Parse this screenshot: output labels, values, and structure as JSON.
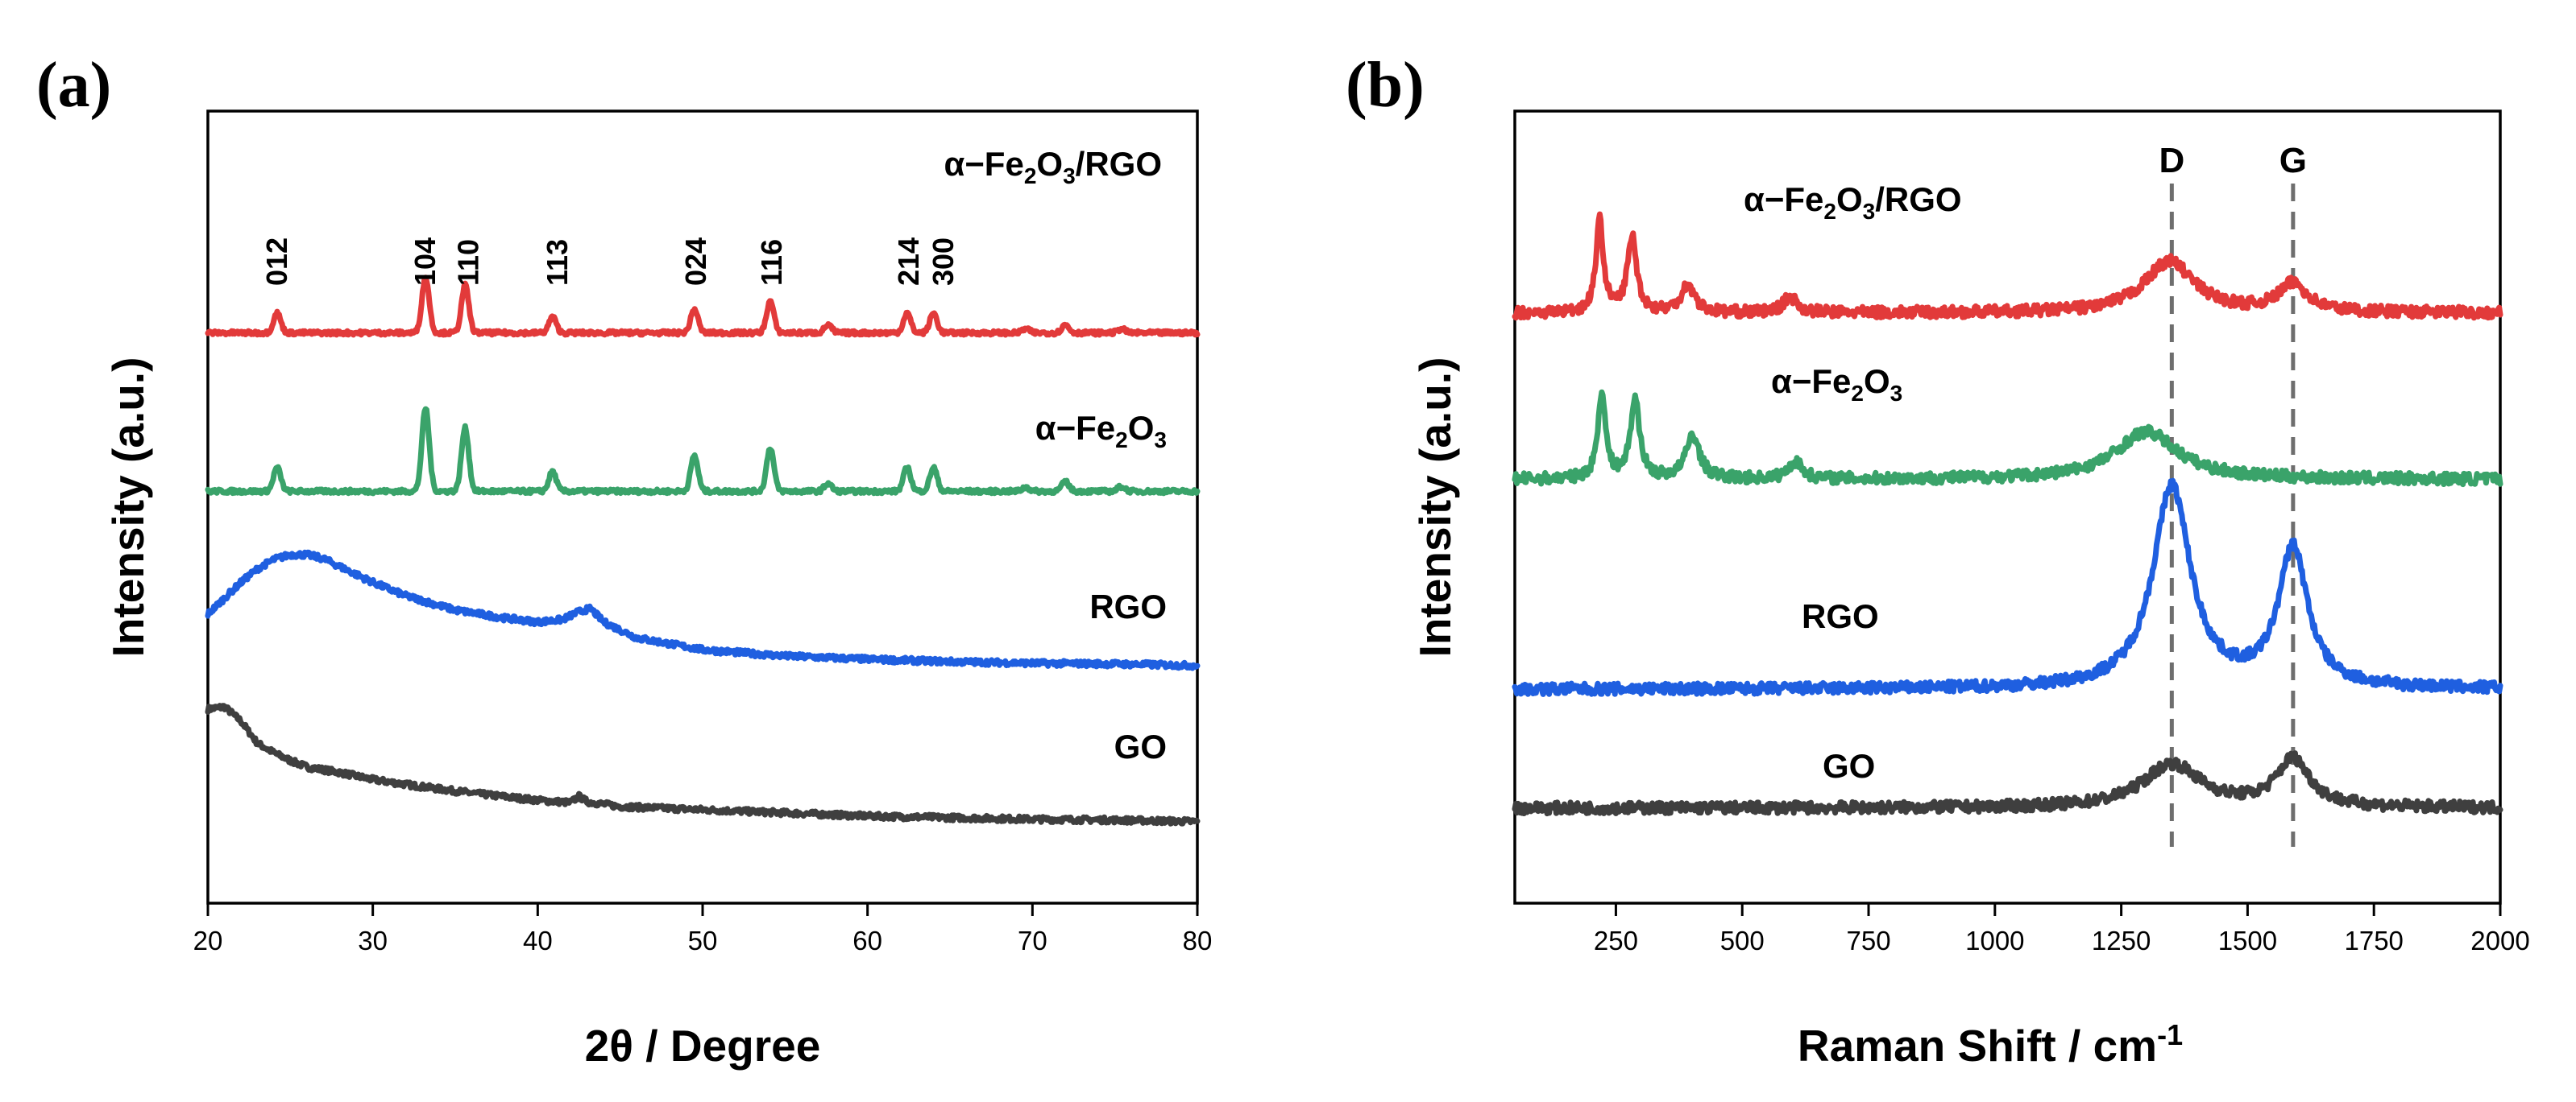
{
  "colors": {
    "GO": "#3f3f3f",
    "RGO": "#1f5fe0",
    "Fe2O3": "#3aa36a",
    "Fe2O3_RGO": "#e23a3a",
    "guide": "#6e6e6e"
  },
  "chart_data": [
    {
      "panel": "(a)",
      "type": "line",
      "title": "",
      "xlabel": "2θ / Degree",
      "ylabel": "Intensity  (a.u.)",
      "xlim": [
        20,
        80
      ],
      "xticks": [
        20,
        30,
        40,
        50,
        60,
        70,
        80
      ],
      "ylim": [
        0,
        10
      ],
      "y_ticks_shown": false,
      "grid": false,
      "series": [
        {
          "name": "GO",
          "label": "GO",
          "color_key": "GO",
          "x": [
            20,
            21,
            22,
            23,
            24,
            25,
            26,
            28,
            30,
            33,
            36,
            40,
            42,
            42.5,
            43,
            45,
            50,
            55,
            60,
            65,
            70,
            75,
            80
          ],
          "y": [
            2.45,
            2.48,
            2.3,
            2.02,
            1.9,
            1.8,
            1.72,
            1.65,
            1.56,
            1.47,
            1.39,
            1.3,
            1.27,
            1.35,
            1.28,
            1.22,
            1.18,
            1.14,
            1.1,
            1.08,
            1.06,
            1.05,
            1.03
          ]
        },
        {
          "name": "RGO",
          "label": "RGO",
          "color_key": "RGO",
          "x": [
            20,
            21,
            22,
            23,
            24,
            25,
            26,
            27,
            28,
            30,
            32,
            35,
            38,
            40,
            41.5,
            42.5,
            43.2,
            44,
            46,
            50,
            55,
            60,
            65,
            70,
            75,
            80
          ],
          "y": [
            3.65,
            3.85,
            4.05,
            4.22,
            4.34,
            4.4,
            4.4,
            4.35,
            4.25,
            4.05,
            3.88,
            3.7,
            3.6,
            3.55,
            3.58,
            3.68,
            3.72,
            3.55,
            3.35,
            3.2,
            3.12,
            3.08,
            3.05,
            3.03,
            3.02,
            3.0
          ]
        },
        {
          "name": "α−Fe2O3",
          "label_main": "α−Fe",
          "label_sub1": "2",
          "label_mid": "O",
          "label_sub2": "3",
          "color_key": "Fe2O3",
          "baseline": 5.2,
          "peaks_2theta": [
            24.2,
            33.2,
            35.6,
            40.9,
            49.5,
            54.1,
            57.6,
            62.4,
            64.0,
            69.6,
            72.0,
            75.4
          ],
          "peak_heights": [
            0.3,
            1.05,
            0.8,
            0.25,
            0.45,
            0.55,
            0.1,
            0.3,
            0.3,
            0.05,
            0.12,
            0.06
          ]
        },
        {
          "name": "α−Fe2O3/RGO",
          "label_main": "α−Fe",
          "label_sub1": "2",
          "label_mid": "O",
          "label_sub2": "3",
          "label_tail": "/RGO",
          "color_key": "Fe2O3_RGO",
          "baseline": 7.2,
          "peaks_2theta": [
            24.2,
            33.2,
            35.6,
            40.9,
            49.5,
            54.1,
            57.6,
            62.4,
            64.0,
            69.6,
            72.0,
            75.4
          ],
          "peak_heights": [
            0.25,
            0.7,
            0.6,
            0.2,
            0.3,
            0.4,
            0.1,
            0.25,
            0.25,
            0.05,
            0.1,
            0.05
          ]
        }
      ],
      "annotations": [
        {
          "text": "012",
          "x": 24.2
        },
        {
          "text": "104",
          "x": 33.2
        },
        {
          "text": "110",
          "x": 35.8
        },
        {
          "text": "113",
          "x": 41.2
        },
        {
          "text": "024",
          "x": 49.6
        },
        {
          "text": "116",
          "x": 54.2
        },
        {
          "text": "214",
          "x": 62.5
        },
        {
          "text": "300",
          "x": 64.6
        }
      ]
    },
    {
      "panel": "(b)",
      "type": "line",
      "title": "",
      "xlabel_main": "Raman Shift / cm",
      "xlabel_sup": "-1",
      "ylabel": "Intensity  (a.u.)",
      "xlim": [
        50,
        2000
      ],
      "xticks": [
        250,
        500,
        750,
        1000,
        1250,
        1500,
        1750,
        2000
      ],
      "ylim": [
        0,
        10
      ],
      "y_ticks_shown": false,
      "grid": false,
      "bands": [
        {
          "label": "D",
          "x": 1350
        },
        {
          "label": "G",
          "x": 1590
        }
      ],
      "series": [
        {
          "name": "GO",
          "label": "GO",
          "color_key": "GO",
          "baseline": 1.2,
          "peaks": [
            {
              "center": 1350,
              "height": 0.55,
              "width": 70
            },
            {
              "center": 1590,
              "height": 0.6,
              "width": 40
            }
          ]
        },
        {
          "name": "RGO",
          "label": "RGO",
          "color_key": "RGO",
          "baseline": 2.7,
          "peaks": [
            {
              "center": 1350,
              "height": 2.55,
              "width": 45
            },
            {
              "center": 1590,
              "height": 1.75,
              "width": 35
            }
          ]
        },
        {
          "name": "α−Fe2O3",
          "label_main": "α−Fe",
          "label_sub1": "2",
          "label_mid": "O",
          "label_sub2": "3",
          "color_key": "Fe2O3",
          "baseline": 5.35,
          "peaks": [
            {
              "center": 222,
              "height": 1.1,
              "width": 9
            },
            {
              "center": 288,
              "height": 1.0,
              "width": 11
            },
            {
              "center": 402,
              "height": 0.55,
              "width": 16
            },
            {
              "center": 605,
              "height": 0.22,
              "width": 16
            },
            {
              "center": 1300,
              "height": 0.6,
              "width": 75
            }
          ]
        },
        {
          "name": "α−Fe2O3/RGO",
          "label_main": "α−Fe",
          "label_sub1": "2",
          "label_mid": "O",
          "label_sub2": "3",
          "label_tail": "/RGO",
          "color_key": "Fe2O3_RGO",
          "baseline": 7.45,
          "peaks": [
            {
              "center": 218,
              "height": 1.15,
              "width": 9
            },
            {
              "center": 282,
              "height": 0.95,
              "width": 11
            },
            {
              "center": 392,
              "height": 0.35,
              "width": 16
            },
            {
              "center": 595,
              "height": 0.2,
              "width": 16
            },
            {
              "center": 1345,
              "height": 0.65,
              "width": 60
            },
            {
              "center": 1590,
              "height": 0.35,
              "width": 35
            }
          ]
        }
      ]
    }
  ]
}
